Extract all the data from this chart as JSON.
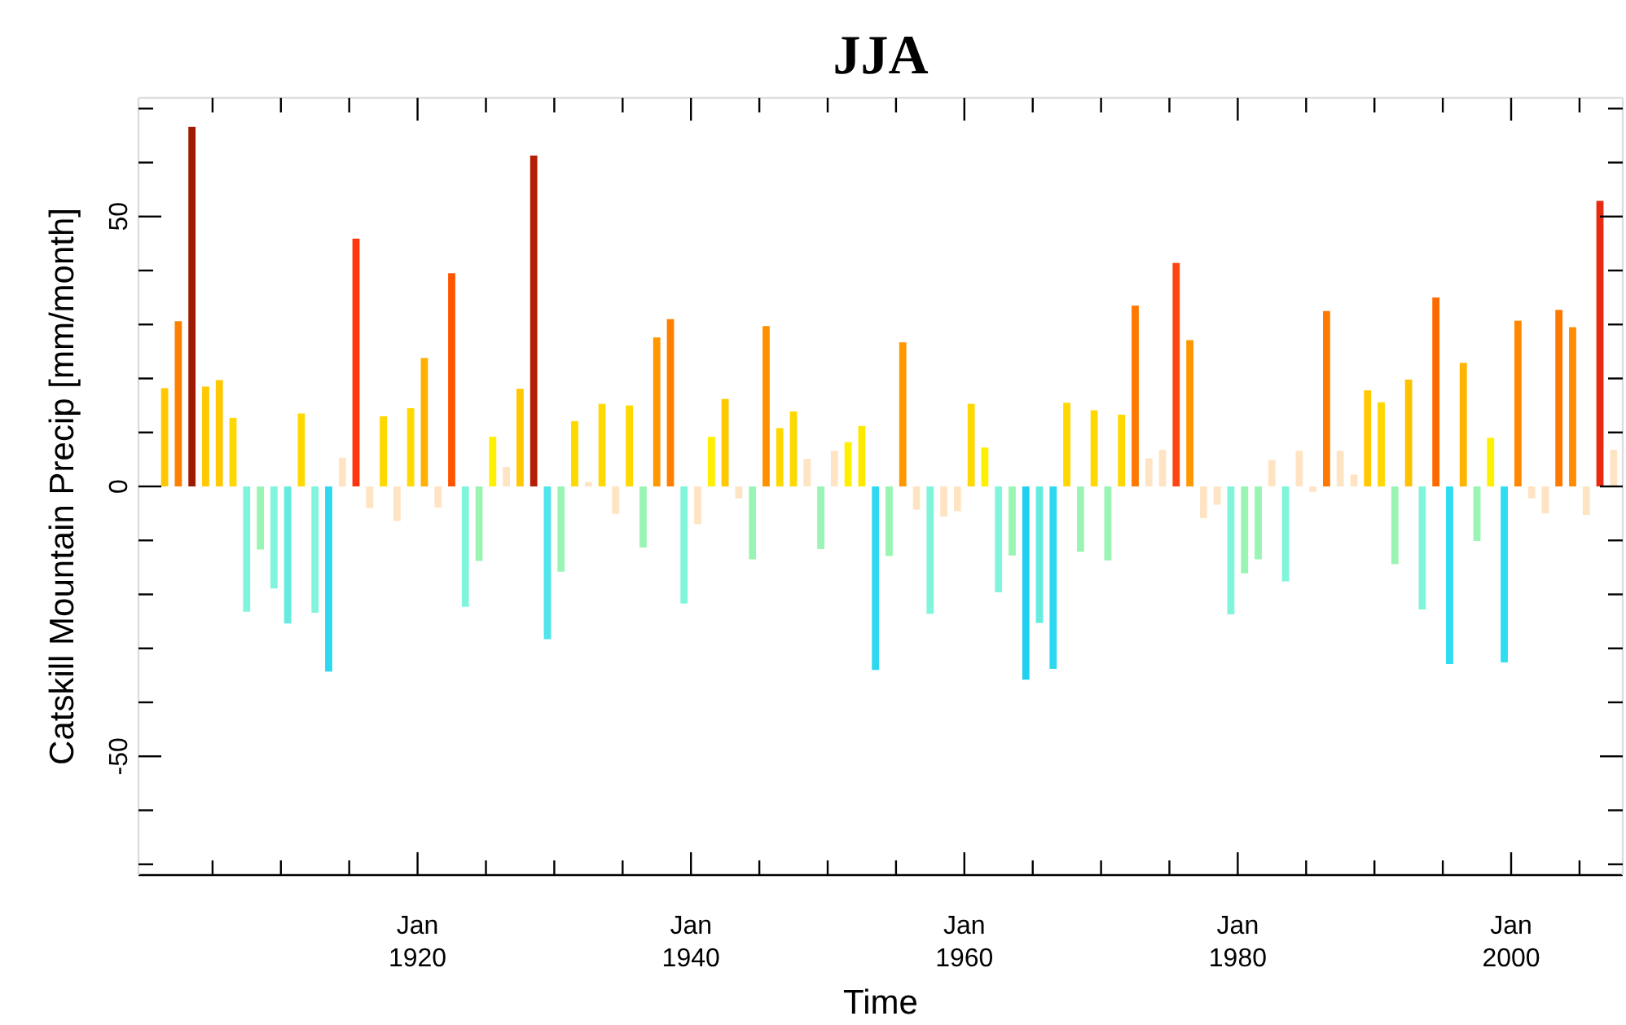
{
  "chart_data": {
    "type": "bar",
    "title": "JJA",
    "xlabel": "Time",
    "ylabel": "Catskill Mountain Precip [mm/month]",
    "x": [
      "1901-07",
      "1902-07",
      "1903-07",
      "1904-07",
      "1905-07",
      "1906-07",
      "1907-07",
      "1908-07",
      "1909-07",
      "1910-07",
      "1911-07",
      "1912-07",
      "1913-07",
      "1914-07",
      "1915-07",
      "1916-07",
      "1917-07",
      "1918-07",
      "1919-07",
      "1920-07",
      "1921-07",
      "1922-07",
      "1923-07",
      "1924-07",
      "1925-07",
      "1926-07",
      "1927-07",
      "1928-07",
      "1929-07",
      "1930-07",
      "1931-07",
      "1932-07",
      "1933-07",
      "1934-07",
      "1935-07",
      "1936-07",
      "1937-07",
      "1938-07",
      "1939-07",
      "1940-07",
      "1941-07",
      "1942-07",
      "1943-07",
      "1944-07",
      "1945-07",
      "1946-07",
      "1947-07",
      "1948-07",
      "1949-07",
      "1950-07",
      "1951-07",
      "1952-07",
      "1953-07",
      "1954-07",
      "1955-07",
      "1956-07",
      "1957-07",
      "1958-07",
      "1959-07",
      "1960-07",
      "1961-07",
      "1962-07",
      "1963-07",
      "1964-07",
      "1965-07",
      "1966-07",
      "1967-07",
      "1968-07",
      "1969-07",
      "1970-07",
      "1971-07",
      "1972-07",
      "1973-07",
      "1974-07",
      "1975-07",
      "1976-07",
      "1977-07",
      "1978-07",
      "1979-07",
      "1980-07",
      "1981-07",
      "1982-07",
      "1983-07",
      "1984-07",
      "1985-07",
      "1986-07",
      "1987-07",
      "1988-07",
      "1989-07",
      "1990-07",
      "1991-07",
      "1992-07",
      "1993-07",
      "1994-07",
      "1995-07",
      "1996-07",
      "1997-07",
      "1998-07",
      "1999-07",
      "2000-07",
      "2001-07",
      "2002-07",
      "2003-07",
      "2004-07",
      "2005-07",
      "2006-07",
      "2007-07"
    ],
    "values": [
      18.2,
      30.6,
      66.6,
      18.5,
      19.7,
      12.7,
      -23.2,
      -11.7,
      -18.9,
      -25.4,
      13.5,
      -23.4,
      -34.3,
      5.3,
      45.9,
      -4.0,
      13.0,
      -6.4,
      14.5,
      23.8,
      -3.9,
      39.5,
      -22.3,
      -13.8,
      9.2,
      3.6,
      18.1,
      61.3,
      -28.3,
      -15.8,
      12.1,
      0.8,
      15.3,
      -5.1,
      15.0,
      -11.3,
      27.6,
      31.0,
      -21.7,
      -7.0,
      9.2,
      16.2,
      -2.2,
      -13.5,
      29.7,
      10.8,
      13.9,
      5.1,
      -11.6,
      6.6,
      8.2,
      11.2,
      -34.0,
      -12.9,
      26.7,
      -4.3,
      -23.6,
      -5.6,
      -4.6,
      15.3,
      7.2,
      -19.6,
      -12.8,
      -35.8,
      -25.3,
      -33.8,
      15.5,
      -12.1,
      14.1,
      -13.7,
      13.3,
      33.5,
      5.2,
      6.8,
      41.4,
      27.1,
      -5.9,
      -3.4,
      -23.7,
      -16.1,
      -13.5,
      4.9,
      -17.6,
      6.6,
      -1.0,
      32.5,
      6.6,
      2.2,
      17.8,
      15.6,
      -14.4,
      19.8,
      -22.8,
      35.0,
      -32.9,
      22.9,
      -10.1,
      9.0,
      -32.6,
      30.7,
      -2.2,
      -5.0,
      32.7,
      29.5,
      -5.3,
      52.9,
      6.8
    ],
    "colors": [
      "#ffc800",
      "#ff8000",
      "#9e1a00",
      "#ffc800",
      "#ffc800",
      "#ffd800",
      "#80f5dc",
      "#9af5b4",
      "#80f5dc",
      "#66ecdf",
      "#ffd800",
      "#80f5dc",
      "#2ed8f0",
      "#ffe4c4",
      "#ff3510",
      "#ffe4c4",
      "#ffd800",
      "#ffe4c4",
      "#ffd800",
      "#ffb000",
      "#ffe4c4",
      "#ff5500",
      "#80f5dc",
      "#9af5b4",
      "#fff000",
      "#ffe4c4",
      "#ffc800",
      "#b41e05",
      "#50e4ec",
      "#9af5b4",
      "#ffd800",
      "#ffe4c4",
      "#ffd800",
      "#ffe4c4",
      "#ffd800",
      "#9af5b4",
      "#ff9800",
      "#ff8000",
      "#80f5dc",
      "#ffe4c4",
      "#fff000",
      "#ffc800",
      "#ffe4c4",
      "#9af5b4",
      "#ff9000",
      "#ffd800",
      "#ffd800",
      "#ffe4c4",
      "#9af5b4",
      "#ffe4c4",
      "#fff000",
      "#ffe800",
      "#2ed8f0",
      "#9af5b4",
      "#ff9800",
      "#ffe4c4",
      "#80f5dc",
      "#ffe4c4",
      "#ffe4c4",
      "#ffd800",
      "#fff000",
      "#80f5dc",
      "#9af5b4",
      "#20d0f0",
      "#66ecdf",
      "#2ed8f0",
      "#ffd800",
      "#9af5b4",
      "#ffd800",
      "#9af5b4",
      "#ffd800",
      "#ff7800",
      "#ffe4c4",
      "#ffe4c4",
      "#ff4510",
      "#ff9800",
      "#ffe4c4",
      "#ffe4c4",
      "#80f5dc",
      "#9af5b4",
      "#9af5b4",
      "#ffe4c4",
      "#80f5dc",
      "#ffe4c4",
      "#ffe4c4",
      "#ff7800",
      "#ffe4c4",
      "#ffe4c4",
      "#ffc800",
      "#ffd800",
      "#9af5b4",
      "#ffc000",
      "#80f5dc",
      "#ff6a00",
      "#30dcf0",
      "#ffb400",
      "#9af5b4",
      "#fff000",
      "#30dcf0",
      "#ff8800",
      "#ffe4c4",
      "#ffe4c4",
      "#ff7800",
      "#ff8c00",
      "#ffe4c4",
      "#e82a10",
      "#ffe4c4"
    ],
    "xlim": [
      "1899-08",
      "2008-03"
    ],
    "xticks": [
      {
        "value": "1905-01",
        "label": null
      },
      {
        "value": "1910-01",
        "label": null
      },
      {
        "value": "1915-01",
        "label": null
      },
      {
        "value": "1920-01",
        "label": "Jan\n1920"
      },
      {
        "value": "1925-01",
        "label": null
      },
      {
        "value": "1930-01",
        "label": null
      },
      {
        "value": "1935-01",
        "label": null
      },
      {
        "value": "1940-01",
        "label": "Jan\n1940"
      },
      {
        "value": "1945-01",
        "label": null
      },
      {
        "value": "1950-01",
        "label": null
      },
      {
        "value": "1955-01",
        "label": null
      },
      {
        "value": "1960-01",
        "label": "Jan\n1960"
      },
      {
        "value": "1965-01",
        "label": null
      },
      {
        "value": "1970-01",
        "label": null
      },
      {
        "value": "1975-01",
        "label": null
      },
      {
        "value": "1980-01",
        "label": "Jan\n1980"
      },
      {
        "value": "1985-01",
        "label": null
      },
      {
        "value": "1990-01",
        "label": null
      },
      {
        "value": "1995-01",
        "label": null
      },
      {
        "value": "2000-01",
        "label": "Jan\n2000"
      },
      {
        "value": "2005-01",
        "label": null
      }
    ],
    "ylim": [
      -72,
      72
    ],
    "yticks": [
      {
        "value": -70,
        "label": null
      },
      {
        "value": -60,
        "label": null
      },
      -50,
      {
        "value": -40,
        "label": null
      },
      {
        "value": -30,
        "label": null
      },
      {
        "value": -20,
        "label": null
      },
      {
        "value": -10,
        "label": null
      },
      0,
      {
        "value": 10,
        "label": null
      },
      {
        "value": 20,
        "label": null
      },
      {
        "value": 30,
        "label": null
      },
      {
        "value": 40,
        "label": null
      },
      50,
      {
        "value": 60,
        "label": null
      },
      {
        "value": 70,
        "label": null
      }
    ]
  }
}
